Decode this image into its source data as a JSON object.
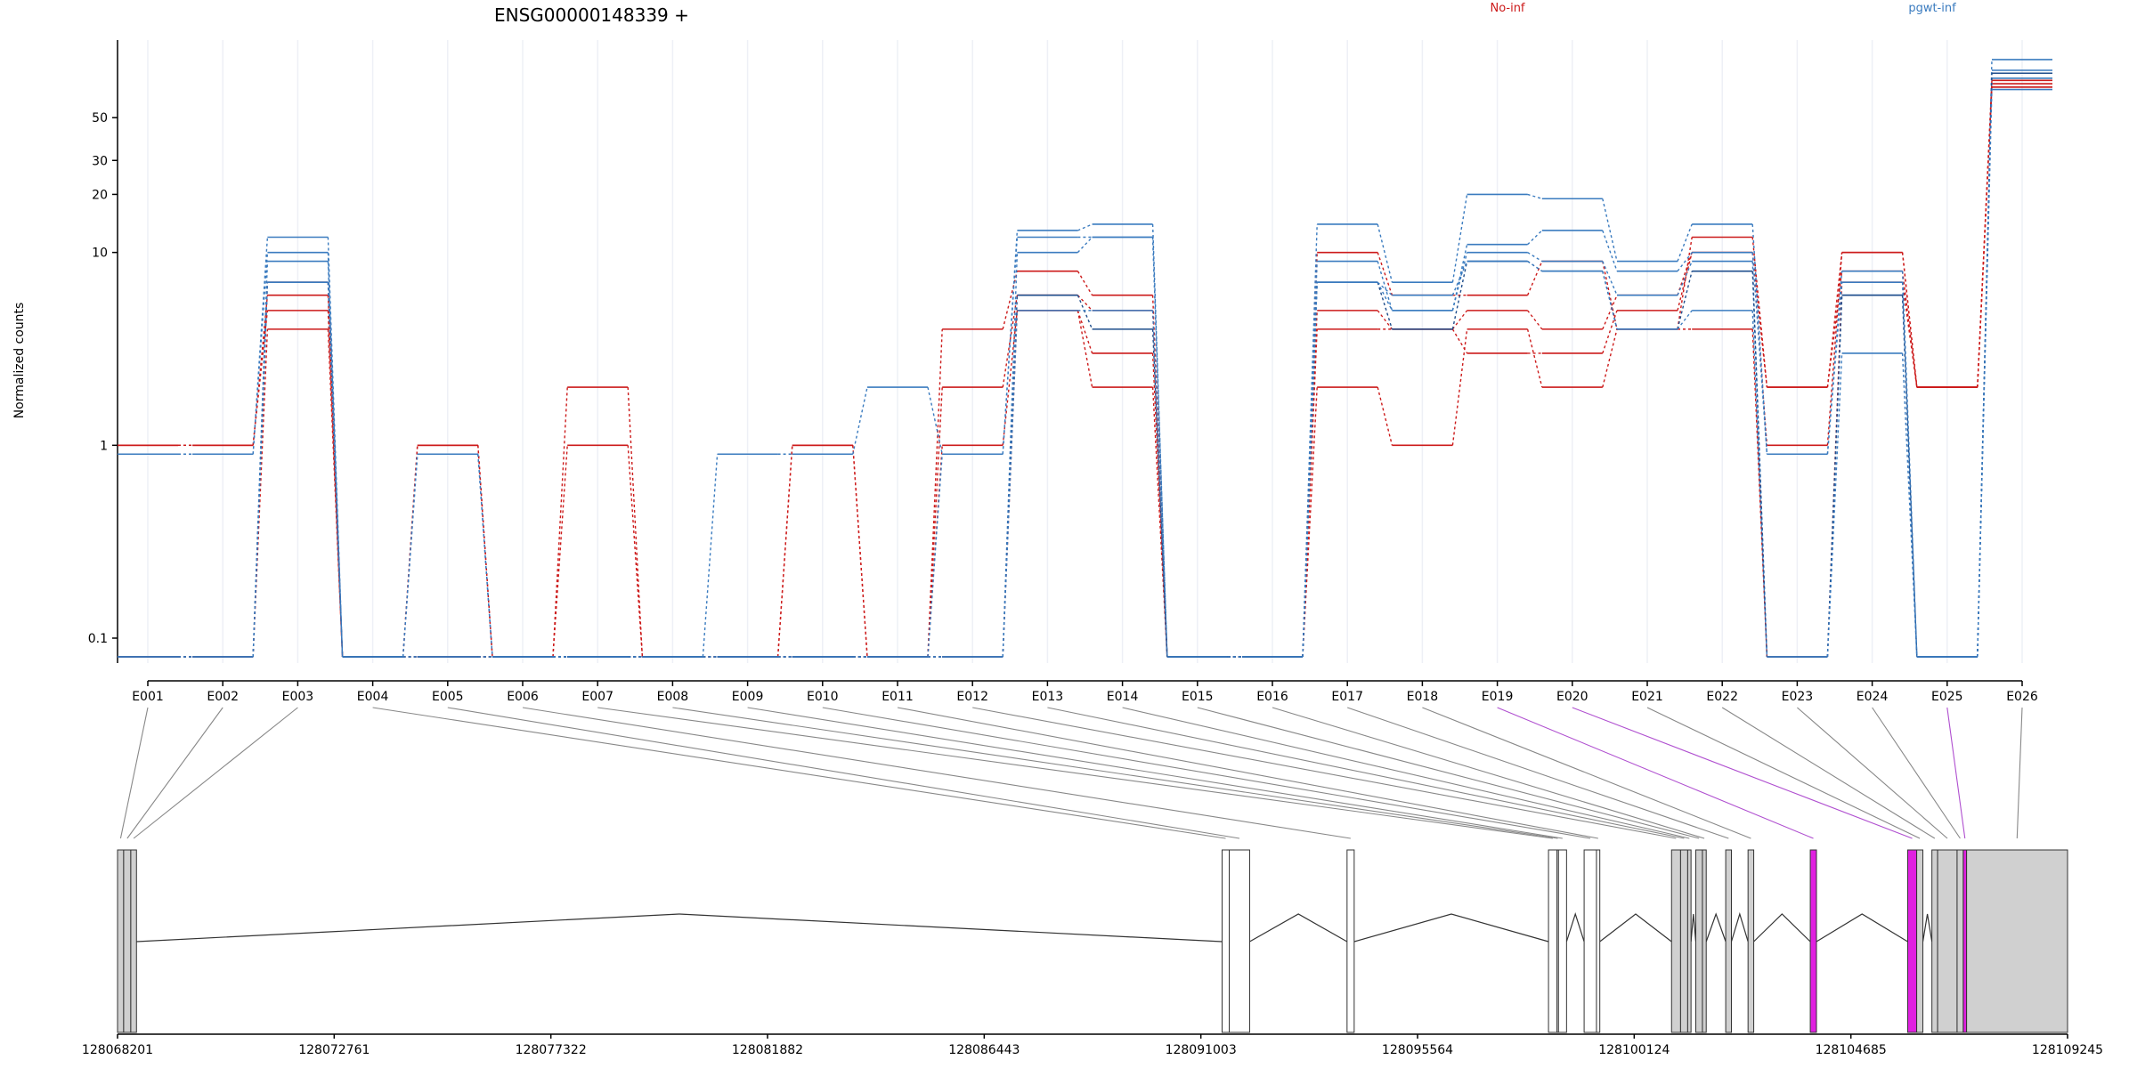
{
  "chart_data": {
    "type": "line",
    "title": "ENSG00000148339 +",
    "ylabel": "Normalized counts",
    "xlabel": "",
    "y_scale": "log",
    "yticks": [
      0.1,
      1,
      10,
      20,
      30,
      50
    ],
    "ylim": [
      0.08,
      110
    ],
    "grid": true,
    "legend_placement": "top",
    "categories": [
      "E001",
      "E002",
      "E003",
      "E004",
      "E005",
      "E006",
      "E007",
      "E008",
      "E009",
      "E010",
      "E011",
      "E012",
      "E013",
      "E014",
      "E015",
      "E016",
      "E017",
      "E018",
      "E019",
      "E020",
      "E021",
      "E022",
      "E023",
      "E024",
      "E025",
      "E026"
    ],
    "series": [
      {
        "group": "No-inf",
        "color": "#CC1A1A",
        "values": [
          1,
          1,
          6,
          0.08,
          1,
          0.08,
          2,
          0.08,
          0.08,
          1,
          0.08,
          4,
          8,
          6,
          0.08,
          0.08,
          10,
          6,
          6,
          9,
          4,
          12,
          2,
          10,
          2,
          75
        ]
      },
      {
        "group": "No-inf",
        "color": "#CC1A1A",
        "values": [
          1,
          1,
          5,
          0.08,
          1,
          0.08,
          1,
          0.08,
          0.08,
          1,
          0.08,
          2,
          6,
          5,
          0.08,
          0.08,
          5,
          4,
          5,
          4,
          6,
          10,
          1,
          10,
          2,
          78
        ]
      },
      {
        "group": "No-inf",
        "color": "#CC1A1A",
        "values": [
          0.08,
          0.08,
          7,
          0.08,
          0.08,
          0.08,
          0.08,
          0.08,
          0.08,
          0.08,
          0.08,
          1,
          5,
          3,
          0.08,
          0.08,
          4,
          4,
          3,
          3,
          5,
          10,
          2,
          8,
          2,
          72
        ]
      },
      {
        "group": "No-inf",
        "color": "#CC1A1A",
        "values": [
          0.08,
          0.08,
          4,
          0.08,
          0.08,
          0.08,
          0.08,
          0.08,
          0.08,
          0.08,
          0.08,
          0.08,
          5,
          2,
          0.08,
          0.08,
          2,
          1,
          4,
          2,
          4,
          4,
          0.08,
          7,
          2,
          72
        ]
      },
      {
        "group": "pgwt-inf",
        "color": "#3A7BBF",
        "values": [
          0.9,
          0.9,
          12,
          0.08,
          0.9,
          0.08,
          0.08,
          0.08,
          0.9,
          0.9,
          2,
          0.9,
          13,
          14,
          0.08,
          0.08,
          14,
          7,
          20,
          19,
          9,
          14,
          0.9,
          8,
          0.08,
          100
        ]
      },
      {
        "group": "pgwt-inf",
        "color": "#3A7BBF",
        "values": [
          0.9,
          0.9,
          10,
          0.08,
          0.9,
          0.08,
          0.08,
          0.08,
          0.08,
          0.08,
          0.08,
          0.9,
          12,
          12,
          0.08,
          0.08,
          9,
          5,
          11,
          13,
          8,
          10,
          0.9,
          7,
          0.08,
          88
        ]
      },
      {
        "group": "pgwt-inf",
        "color": "#3A7BBF",
        "values": [
          0.08,
          0.08,
          9,
          0.08,
          0.08,
          0.08,
          0.08,
          0.08,
          0.08,
          0.08,
          0.08,
          0.08,
          10,
          12,
          0.08,
          0.08,
          7,
          5,
          10,
          9,
          6,
          9,
          0.08,
          6,
          0.08,
          80
        ]
      },
      {
        "group": "pgwt-inf",
        "color": "#1F4E8C",
        "values": [
          0.08,
          0.08,
          7,
          0.08,
          0.08,
          0.08,
          0.08,
          0.08,
          0.08,
          0.08,
          0.08,
          0.08,
          6,
          4,
          0.08,
          0.08,
          7,
          4,
          9,
          8,
          4,
          8,
          0.08,
          6,
          0.08,
          85
        ]
      },
      {
        "group": "pgwt-inf",
        "color": "#3A7BBF",
        "values": [
          0.08,
          0.08,
          7,
          0.08,
          0.08,
          0.08,
          0.08,
          0.08,
          0.08,
          0.08,
          0.08,
          0.08,
          5,
          5,
          0.08,
          0.08,
          7,
          6,
          9,
          8,
          4,
          5,
          0.08,
          3,
          0.08,
          70
        ]
      }
    ],
    "legend": [
      {
        "label": "No-inf",
        "color": "#CC1A1A"
      },
      {
        "label": "pgwt-inf",
        "color": "#3A7BBF"
      }
    ],
    "gene_model": {
      "xticks": [
        "128068201",
        "128072761",
        "128077322",
        "128081882",
        "128086443",
        "128091003",
        "128095564",
        "128100124",
        "128104685",
        "128109245"
      ],
      "range": [
        128068201,
        128109245
      ],
      "exons": [
        {
          "id": "E001",
          "start": 128068201,
          "end": 128068330,
          "fill": "#d0d0d0"
        },
        {
          "id": "E002",
          "start": 128068330,
          "end": 128068480,
          "fill": "#d0d0d0"
        },
        {
          "id": "E003",
          "start": 128068480,
          "end": 128068600,
          "fill": "#d0d0d0"
        },
        {
          "id": "E004",
          "start": 128091450,
          "end": 128091600,
          "fill": "#ffffff"
        },
        {
          "id": "E005",
          "start": 128091600,
          "end": 128092030,
          "fill": "#ffffff"
        },
        {
          "id": "E006",
          "start": 128094080,
          "end": 128094230,
          "fill": "#ffffff"
        },
        {
          "id": "E007",
          "start": 128098320,
          "end": 128098500,
          "fill": "#ffffff"
        },
        {
          "id": "E008",
          "start": 128098500,
          "end": 128098530,
          "fill": "#ffffff"
        },
        {
          "id": "E009",
          "start": 128098530,
          "end": 128098700,
          "fill": "#ffffff"
        },
        {
          "id": "E010",
          "start": 128099070,
          "end": 128099330,
          "fill": "#ffffff"
        },
        {
          "id": "E011",
          "start": 128099330,
          "end": 128099400,
          "fill": "#ffffff"
        },
        {
          "id": "E012",
          "start": 128100910,
          "end": 128101100,
          "fill": "#d0d0d0"
        },
        {
          "id": "E013",
          "start": 128101100,
          "end": 128101250,
          "fill": "#d0d0d0"
        },
        {
          "id": "E014",
          "start": 128101250,
          "end": 128101320,
          "fill": "#d0d0d0"
        },
        {
          "id": "E015",
          "start": 128101420,
          "end": 128101560,
          "fill": "#d0d0d0"
        },
        {
          "id": "E016",
          "start": 128101560,
          "end": 128101640,
          "fill": "#d0d0d0"
        },
        {
          "id": "E017",
          "start": 128102050,
          "end": 128102170,
          "fill": "#d0d0d0"
        },
        {
          "id": "E018",
          "start": 128102520,
          "end": 128102640,
          "fill": "#d0d0d0"
        },
        {
          "id": "E019",
          "start": 128103830,
          "end": 128103960,
          "fill": "#e020e0"
        },
        {
          "id": "E020",
          "start": 128105880,
          "end": 128106070,
          "fill": "#e020e0"
        },
        {
          "id": "E021",
          "start": 128106070,
          "end": 128106200,
          "fill": "#d0d0d0"
        },
        {
          "id": "E022",
          "start": 128106390,
          "end": 128106510,
          "fill": "#d0d0d0"
        },
        {
          "id": "E023",
          "start": 128106510,
          "end": 128106920,
          "fill": "#d0d0d0"
        },
        {
          "id": "E024",
          "start": 128106920,
          "end": 128107050,
          "fill": "#d0d0d0"
        },
        {
          "id": "E025",
          "start": 128107050,
          "end": 128107120,
          "fill": "#e020e0"
        },
        {
          "id": "E026",
          "start": 128107120,
          "end": 128109245,
          "fill": "#d0d0d0"
        }
      ]
    }
  }
}
